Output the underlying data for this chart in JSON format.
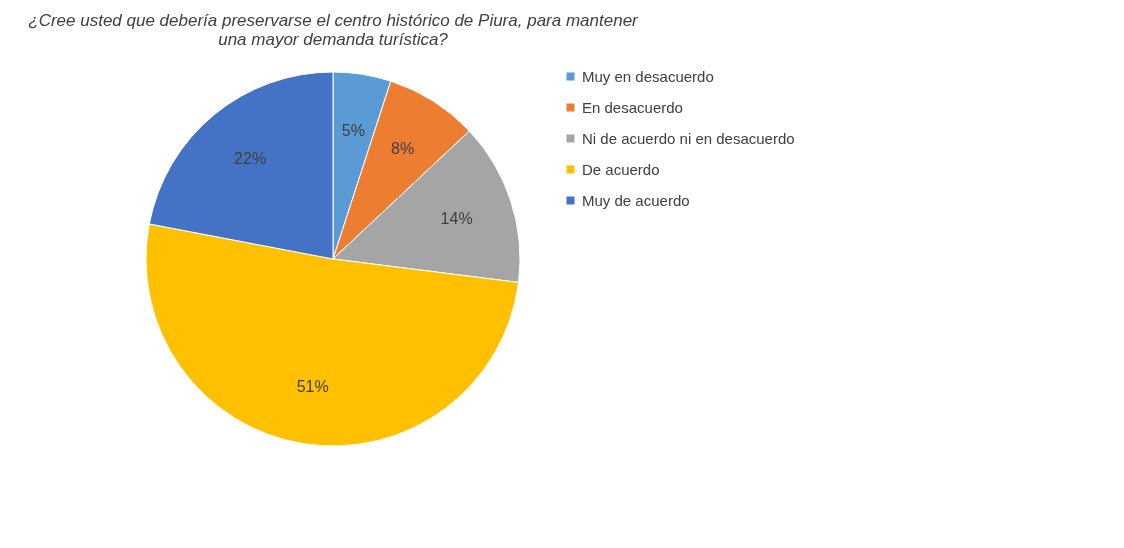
{
  "chart_data": {
    "type": "pie",
    "title": [
      "¿Cree usted que debería preservarse  el centro histórico de Piura, para mantener",
      "una mayor demanda turística?"
    ],
    "categories": [
      "Muy en desacuerdo",
      "En desacuerdo",
      "Ni de acuerdo ni en desacuerdo",
      "De acuerdo",
      "Muy de acuerdo"
    ],
    "values": [
      5,
      8,
      14,
      51,
      22
    ],
    "colors": [
      "#5b9bd5",
      "#ed7d31",
      "#a5a5a5",
      "#ffc000",
      "#4472c4"
    ],
    "value_labels": [
      "5%",
      "8%",
      "14%",
      "51%",
      "22%"
    ],
    "legend": "right"
  }
}
